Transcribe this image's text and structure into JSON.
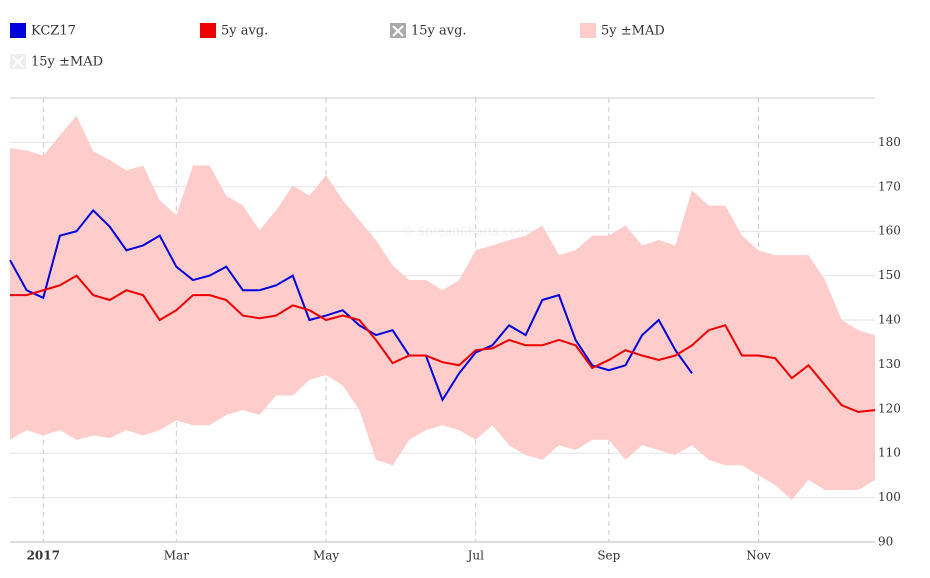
{
  "chart_data": {
    "type": "line",
    "watermark": "© SpreadCharts.com",
    "categories": [
      null,
      null,
      "2017",
      null,
      null,
      null,
      null,
      null,
      null,
      null,
      "Mar",
      null,
      null,
      null,
      null,
      null,
      null,
      null,
      null,
      "May",
      null,
      null,
      null,
      null,
      null,
      null,
      null,
      null,
      "Jul",
      null,
      null,
      null,
      null,
      null,
      null,
      null,
      "Sep",
      null,
      null,
      null,
      null,
      null,
      null,
      null,
      null,
      "Nov",
      null,
      null,
      null,
      null,
      null,
      null,
      null
    ],
    "ylim": [
      90,
      190
    ],
    "yticks": [
      90,
      100,
      110,
      120,
      130,
      140,
      150,
      160,
      170,
      180
    ],
    "grid": true,
    "series": [
      {
        "name": "KCZ17",
        "color": "#0000dd",
        "visible": true,
        "values": [
          153.5,
          146.7,
          145,
          159,
          160,
          164.7,
          161,
          155.7,
          156.8,
          159,
          152,
          149,
          150,
          152,
          146.7,
          146.7,
          147.8,
          150,
          140,
          141,
          142.2,
          138.8,
          136.6,
          137.7,
          132,
          132,
          122,
          128,
          132.7,
          134.3,
          138.8,
          136.6,
          144.5,
          145.6,
          135.5,
          129.8,
          128.7,
          129.8,
          136.6,
          140,
          133.2,
          128,
          null,
          null,
          null,
          null,
          null,
          null,
          null,
          null,
          null,
          null,
          null
        ]
      },
      {
        "name": "5y avg.",
        "color": "#ee0000",
        "visible": true,
        "values": [
          145.6,
          145.6,
          146.7,
          147.8,
          150,
          145.6,
          144.5,
          146.7,
          145.6,
          140,
          142.2,
          145.6,
          145.6,
          144.5,
          141,
          140.4,
          141,
          143.3,
          142.2,
          140,
          141,
          140,
          135.5,
          130.3,
          132,
          132,
          130.5,
          129.8,
          133.2,
          133.6,
          135.5,
          134.3,
          134.3,
          135.5,
          134.3,
          129.2,
          131,
          133.2,
          132,
          131,
          132,
          134.3,
          137.7,
          138.8,
          132,
          132,
          131.4,
          126.9,
          129.8,
          125.3,
          120.8,
          119.3,
          119.7
        ]
      },
      {
        "name": "15y avg.",
        "color": "#aaaaaa",
        "visible": false
      },
      {
        "name": "5y ±MAD",
        "color": "#ffcccc",
        "visible": true,
        "band": true,
        "upper": [
          178.7,
          178.2,
          177,
          181.6,
          186,
          178,
          176,
          173.7,
          174.8,
          167,
          163.6,
          174.8,
          174.8,
          168,
          165.8,
          160.2,
          164.7,
          170.3,
          168,
          172.6,
          167,
          162.5,
          158,
          152.3,
          149,
          149,
          146.7,
          149,
          155.7,
          156.8,
          158,
          159,
          161.3,
          154.6,
          155.7,
          159,
          159,
          161.3,
          156.8,
          158,
          156.8,
          169.2,
          165.8,
          165.8,
          159,
          155.7,
          154.6,
          154.6,
          154.6,
          149,
          140,
          137.7,
          136.6
        ],
        "lower": [
          113,
          115.2,
          114,
          115.2,
          113,
          114,
          113.4,
          115.2,
          114,
          115.2,
          117.4,
          116.3,
          116.3,
          118.6,
          119.7,
          118.6,
          123,
          123,
          126.5,
          127.6,
          125.3,
          119.7,
          108.5,
          107.3,
          113,
          115.2,
          116.3,
          115.2,
          113,
          116.3,
          111.8,
          109.6,
          108.5,
          111.8,
          110.7,
          113,
          113,
          108.5,
          111.8,
          110.7,
          109.6,
          111.8,
          108.5,
          107.3,
          107.3,
          105,
          102.8,
          99.5,
          104,
          101.7,
          101.7,
          101.7,
          104
        ]
      },
      {
        "name": "15y ±MAD",
        "color": "#dddddd",
        "visible": false,
        "band": true
      }
    ]
  }
}
